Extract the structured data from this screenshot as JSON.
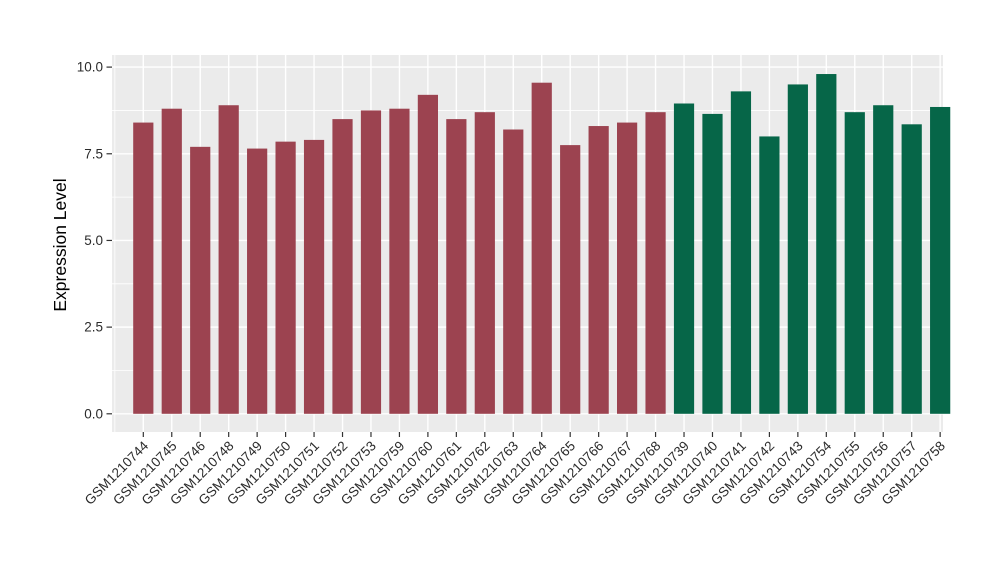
{
  "chart_data": {
    "type": "bar",
    "title": "",
    "xlabel": "",
    "ylabel": "Expression Level",
    "ylim": [
      0,
      10
    ],
    "yticks": [
      {
        "label": "0.0",
        "value": 0
      },
      {
        "label": "2.5",
        "value": 2.5
      },
      {
        "label": "5.0",
        "value": 5
      },
      {
        "label": "7.5",
        "value": 7.5
      },
      {
        "label": "10.0",
        "value": 10
      }
    ],
    "yticks_minor": [
      1.25,
      3.75,
      6.25,
      8.75
    ],
    "grid": "on",
    "legend_position": "none",
    "categories": [
      "GSM1210744",
      "GSM1210745",
      "GSM1210746",
      "GSM1210748",
      "GSM1210749",
      "GSM1210750",
      "GSM1210751",
      "GSM1210752",
      "GSM1210753",
      "GSM1210759",
      "GSM1210760",
      "GSM1210761",
      "GSM1210762",
      "GSM1210763",
      "GSM1210764",
      "GSM1210765",
      "GSM1210766",
      "GSM1210767",
      "GSM1210768",
      "GSM1210739",
      "GSM1210740",
      "GSM1210741",
      "GSM1210742",
      "GSM1210743",
      "GSM1210754",
      "GSM1210755",
      "GSM1210756",
      "GSM1210757",
      "GSM1210758"
    ],
    "values": [
      8.4,
      8.8,
      7.7,
      8.9,
      7.65,
      7.85,
      7.9,
      8.5,
      8.75,
      8.8,
      9.2,
      8.5,
      8.7,
      8.2,
      9.55,
      7.75,
      8.3,
      8.4,
      8.7,
      8.95,
      8.65,
      9.3,
      8.0,
      9.5,
      9.8,
      8.7,
      8.9,
      8.35,
      8.85
    ],
    "groups": [
      "A",
      "A",
      "A",
      "A",
      "A",
      "A",
      "A",
      "A",
      "A",
      "A",
      "A",
      "A",
      "A",
      "A",
      "A",
      "A",
      "A",
      "A",
      "A",
      "B",
      "B",
      "B",
      "B",
      "B",
      "B",
      "B",
      "B",
      "B",
      "B"
    ],
    "colors": {
      "group_A": "#9C4350",
      "group_B": "#066648",
      "panel_background": "#EBEBEB",
      "grid_line": "#FFFFFF",
      "axis_text": "#2B2B2B",
      "axis_title": "#000000",
      "tick_mark": "#333333",
      "figure_background": "#FFFFFF"
    }
  }
}
